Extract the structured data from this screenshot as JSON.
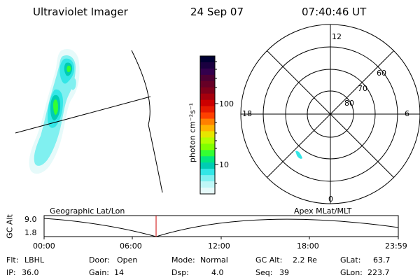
{
  "header": {
    "instrument": "Ultraviolet Imager",
    "date": "24 Sep 07",
    "time": "07:40:46 UT"
  },
  "colorbar": {
    "unit_label": "photon cm⁻²s⁻¹",
    "scale": "log",
    "tick_labels": [
      "100",
      "10"
    ],
    "colors": [
      "#000033",
      "#1a0040",
      "#33004d",
      "#4d0033",
      "#660026",
      "#80001a",
      "#a6000d",
      "#cc0000",
      "#e61a00",
      "#ff4000",
      "#ff8000",
      "#ffb300",
      "#e6e600",
      "#b3ff00",
      "#80ff00",
      "#33ff33",
      "#00e680",
      "#00ccb3",
      "#33e6e6",
      "#80f0f0",
      "#bff7f7",
      "#e6fafa"
    ]
  },
  "polar_plot": {
    "mlt_labels": [
      "12",
      "18",
      "6",
      "0"
    ],
    "mlat_labels": [
      "60",
      "70",
      "80"
    ]
  },
  "timeline": {
    "y_axis_label": "GC Alt",
    "y_ticks": [
      "9.0",
      "1.8"
    ],
    "left_label": "Geographic Lat/Lon",
    "right_label": "Apex MLat/MLT",
    "time_ticks": [
      "00:00",
      "06:00",
      "12:00",
      "18:00",
      "23:59"
    ],
    "current_time_marker": "07:40:46"
  },
  "status": {
    "rows": [
      [
        {
          "key": "Flt:",
          "value": "LBHL"
        },
        {
          "key": "Door:",
          "value": "Open"
        },
        {
          "key": "Mode:",
          "value": "Normal"
        },
        {
          "key": "GC Alt:",
          "value": "2.2 Re"
        },
        {
          "key": "GLat:",
          "value": "63.7"
        }
      ],
      [
        {
          "key": "IP:",
          "value": "36.0"
        },
        {
          "key": "Gain:",
          "value": "14"
        },
        {
          "key": "Dsp:",
          "value": "4.0"
        },
        {
          "key": "Seq:",
          "value": "39"
        },
        {
          "key": "GLon:",
          "value": "223.7"
        }
      ]
    ]
  }
}
